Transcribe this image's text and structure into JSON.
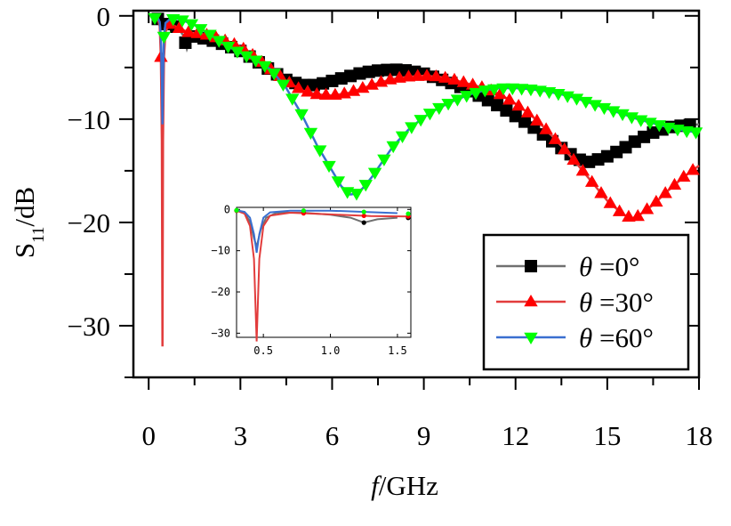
{
  "chart_data": {
    "type": "line",
    "xlabel": "f/GHz",
    "ylabel": "S11/dB",
    "xlim": [
      -0.5,
      18
    ],
    "ylim": [
      -35,
      0.5
    ],
    "xticks": [
      0,
      3,
      6,
      9,
      12,
      15,
      18
    ],
    "yticks": [
      0,
      -10,
      -20,
      -30
    ],
    "xtick_labels": [
      "0",
      "3",
      "6",
      "9",
      "12",
      "15",
      "18"
    ],
    "ytick_labels": [
      "0",
      "−10",
      "−20",
      "−30"
    ],
    "grid": false,
    "legend_position": "bottom-right",
    "series": [
      {
        "name": "θ =0°",
        "color": "#000000",
        "line_color": "#707070",
        "marker": "square",
        "x": [
          0.3,
          0.36,
          0.4,
          0.43,
          0.45,
          0.48,
          0.52,
          0.6,
          0.8,
          1.0,
          1.15,
          1.25,
          1.35,
          1.5,
          2.0,
          2.5,
          3.0,
          3.5,
          4.0,
          4.5,
          5.0,
          5.5,
          6.0,
          6.5,
          7.0,
          7.5,
          8.0,
          8.5,
          9.0,
          9.5,
          10.0,
          10.5,
          11.0,
          11.5,
          12.0,
          12.5,
          13.0,
          13.5,
          14.0,
          14.3,
          14.6,
          15.0,
          15.5,
          16.0,
          16.5,
          17.0,
          17.5,
          18.0
        ],
        "y": [
          -0.3,
          -0.8,
          -3.0,
          -7.0,
          -9.0,
          -5.0,
          -2.0,
          -0.8,
          -0.8,
          -1.3,
          -2.0,
          -3.2,
          -2.4,
          -2.0,
          -2.3,
          -2.8,
          -3.4,
          -4.3,
          -5.3,
          -6.2,
          -6.7,
          -6.7,
          -6.3,
          -5.9,
          -5.5,
          -5.3,
          -5.2,
          -5.3,
          -5.6,
          -6.1,
          -6.6,
          -7.3,
          -8.0,
          -8.8,
          -9.7,
          -10.6,
          -11.7,
          -12.8,
          -13.8,
          -14.2,
          -14.0,
          -13.6,
          -12.9,
          -12.0,
          -11.3,
          -10.8,
          -10.6,
          -10.5
        ]
      },
      {
        "name": "θ =30°",
        "color": "#ff0000",
        "line_color": "#e23c3c",
        "marker": "triangle-up",
        "x": [
          0.3,
          0.36,
          0.4,
          0.43,
          0.45,
          0.47,
          0.5,
          0.55,
          0.7,
          1.0,
          1.3,
          1.6,
          2.0,
          2.5,
          3.0,
          3.5,
          4.0,
          4.5,
          5.0,
          5.5,
          6.0,
          6.5,
          7.0,
          7.5,
          8.0,
          8.5,
          9.0,
          9.5,
          10.0,
          10.5,
          11.0,
          11.5,
          12.0,
          12.5,
          13.0,
          13.5,
          14.0,
          14.5,
          15.0,
          15.5,
          15.8,
          16.0,
          16.5,
          17.0,
          17.5,
          18.0
        ],
        "y": [
          -0.3,
          -1.0,
          -4.0,
          -12.0,
          -32.0,
          -12.0,
          -4.0,
          -1.5,
          -0.8,
          -1.2,
          -1.6,
          -1.7,
          -1.9,
          -2.4,
          -3.0,
          -4.0,
          -5.2,
          -6.3,
          -7.2,
          -7.6,
          -7.7,
          -7.5,
          -7.0,
          -6.5,
          -6.1,
          -5.9,
          -5.8,
          -5.9,
          -6.2,
          -6.6,
          -7.0,
          -7.6,
          -8.5,
          -9.6,
          -11.0,
          -12.6,
          -14.3,
          -16.1,
          -17.9,
          -19.2,
          -19.6,
          -19.4,
          -18.3,
          -16.9,
          -15.6,
          -14.5
        ]
      },
      {
        "name": "θ =60°",
        "color": "#00ff00",
        "line_color": "#3a6fd0",
        "marker": "triangle-down",
        "x": [
          0.3,
          0.36,
          0.4,
          0.43,
          0.45,
          0.47,
          0.5,
          0.55,
          0.7,
          1.0,
          1.5,
          2.0,
          2.5,
          3.0,
          3.5,
          4.0,
          4.5,
          5.0,
          5.5,
          6.0,
          6.3,
          6.6,
          6.8,
          7.0,
          7.3,
          7.6,
          8.0,
          8.5,
          9.0,
          9.5,
          10.0,
          10.5,
          11.0,
          11.5,
          12.0,
          12.5,
          13.0,
          13.5,
          14.0,
          14.5,
          15.0,
          15.5,
          16.0,
          16.5,
          17.0,
          17.5,
          18.0
        ],
        "y": [
          -0.2,
          -0.6,
          -2.0,
          -6.0,
          -10.5,
          -6.0,
          -2.0,
          -0.7,
          -0.3,
          -0.3,
          -0.9,
          -1.8,
          -2.8,
          -3.6,
          -4.3,
          -5.2,
          -7.0,
          -9.5,
          -12.5,
          -15.0,
          -16.5,
          -17.3,
          -17.2,
          -16.7,
          -15.6,
          -14.3,
          -12.6,
          -11.0,
          -9.8,
          -8.9,
          -8.2,
          -7.6,
          -7.2,
          -7.0,
          -7.0,
          -7.1,
          -7.3,
          -7.6,
          -8.0,
          -8.5,
          -9.0,
          -9.5,
          -10.0,
          -10.4,
          -10.8,
          -11.1,
          -11.3
        ]
      }
    ],
    "inset": {
      "xlim": [
        0.3,
        1.6
      ],
      "ylim": [
        -31,
        0.5
      ],
      "xticks": [
        0.5,
        1.0,
        1.5
      ],
      "yticks": [
        0,
        -10,
        -20,
        -30
      ],
      "xtick_labels": [
        "0.5",
        "1.0",
        "1.5"
      ],
      "ytick_labels": [
        "0",
        "−10",
        "−20",
        "−30"
      ]
    }
  }
}
